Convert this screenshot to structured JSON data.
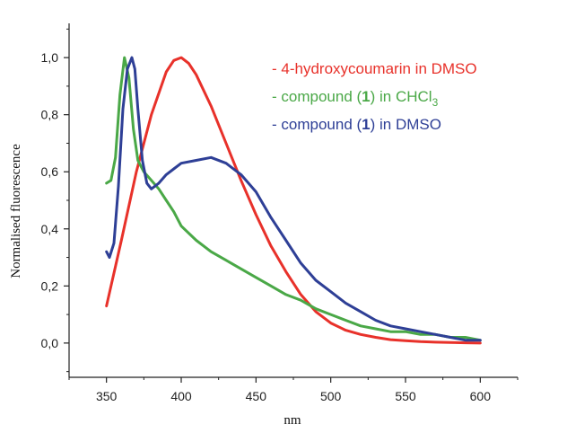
{
  "chart_data": {
    "type": "line",
    "title": "",
    "xlabel": "nm",
    "ylabel": "Normalised fluorescence",
    "xlim": [
      325,
      625
    ],
    "ylim": [
      -0.12,
      1.12
    ],
    "x_ticks": [
      350,
      400,
      450,
      500,
      550,
      600
    ],
    "x_tick_labels": [
      "350",
      "400",
      "450",
      "500",
      "550",
      "600"
    ],
    "y_ticks": [
      0.0,
      0.2,
      0.4,
      0.6,
      0.8,
      1.0
    ],
    "y_tick_labels": [
      "0,0",
      "0,2",
      "0,4",
      "0,6",
      "0,8",
      "1,0"
    ],
    "grid": false,
    "legend_position": "top-right",
    "series": [
      {
        "name": "4-hydroxycoumarin in DMSO",
        "color": "#e8312a",
        "legend": {
          "prefix": "- 4-hydroxycoumarin in DMSO",
          "bold": "",
          "mid": "",
          "sub": "",
          "suffix": ""
        },
        "x": [
          350,
          360,
          370,
          380,
          390,
          395,
          400,
          405,
          410,
          420,
          430,
          440,
          450,
          460,
          470,
          480,
          490,
          500,
          510,
          520,
          530,
          540,
          550,
          560,
          570,
          580,
          590,
          600
        ],
        "y": [
          0.13,
          0.36,
          0.6,
          0.8,
          0.95,
          0.99,
          1.0,
          0.98,
          0.94,
          0.83,
          0.7,
          0.57,
          0.45,
          0.34,
          0.25,
          0.17,
          0.11,
          0.07,
          0.045,
          0.03,
          0.02,
          0.012,
          0.008,
          0.005,
          0.003,
          0.002,
          0.001,
          0.0
        ]
      },
      {
        "name": "compound (1) in CHCl3",
        "color": "#4aa847",
        "legend": {
          "prefix": "- compound (",
          "bold": "1",
          "mid": ") in CHCl",
          "sub": "3",
          "suffix": ""
        },
        "x": [
          350,
          353,
          356,
          359,
          362,
          365,
          368,
          371,
          375,
          380,
          385,
          390,
          395,
          400,
          410,
          420,
          430,
          440,
          450,
          460,
          470,
          480,
          490,
          500,
          510,
          520,
          530,
          540,
          550,
          560,
          570,
          580,
          590,
          600
        ],
        "y": [
          0.56,
          0.57,
          0.65,
          0.87,
          1.0,
          0.93,
          0.75,
          0.64,
          0.6,
          0.57,
          0.54,
          0.5,
          0.46,
          0.41,
          0.36,
          0.32,
          0.29,
          0.26,
          0.23,
          0.2,
          0.17,
          0.15,
          0.12,
          0.1,
          0.08,
          0.06,
          0.05,
          0.04,
          0.04,
          0.03,
          0.03,
          0.02,
          0.02,
          0.01
        ]
      },
      {
        "name": "compound (1) in DMSO",
        "color": "#2e3f96",
        "legend": {
          "prefix": "- compound (",
          "bold": "1",
          "mid": ") in DMSO",
          "sub": "",
          "suffix": ""
        },
        "x": [
          350,
          352,
          355,
          358,
          361,
          364,
          367,
          369,
          371,
          374,
          377,
          380,
          385,
          390,
          395,
          400,
          410,
          420,
          430,
          440,
          450,
          460,
          470,
          480,
          490,
          500,
          510,
          520,
          530,
          540,
          550,
          560,
          570,
          580,
          590,
          600
        ],
        "y": [
          0.32,
          0.3,
          0.35,
          0.55,
          0.82,
          0.96,
          1.0,
          0.96,
          0.82,
          0.64,
          0.56,
          0.54,
          0.56,
          0.59,
          0.61,
          0.63,
          0.64,
          0.65,
          0.63,
          0.59,
          0.53,
          0.44,
          0.36,
          0.28,
          0.22,
          0.18,
          0.14,
          0.11,
          0.08,
          0.06,
          0.05,
          0.04,
          0.03,
          0.02,
          0.01,
          0.01
        ]
      }
    ]
  }
}
